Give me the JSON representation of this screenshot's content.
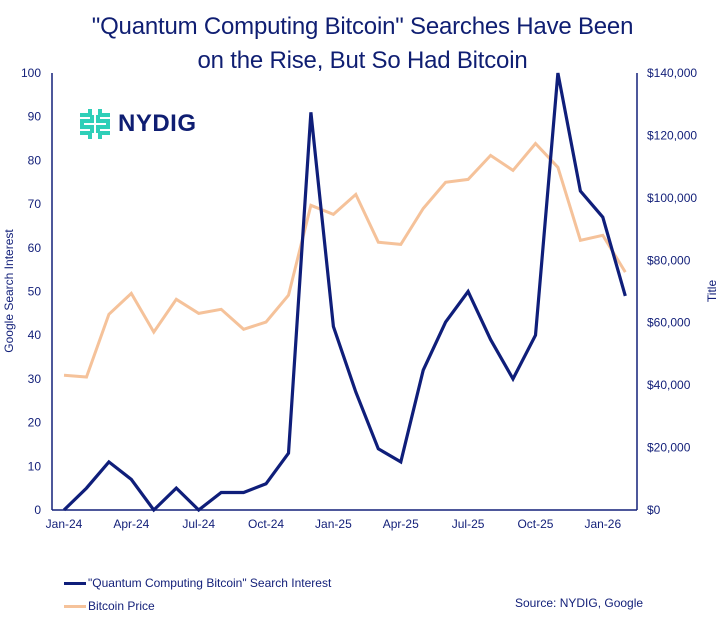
{
  "title_lines": [
    "\"Quantum Computing Bitcoin\" Searches Have Been",
    "on the Rise, But So Had Bitcoin"
  ],
  "logo": {
    "icon": "nydig-logo-icon",
    "text": "NYDIG",
    "color": "#2fcfb8"
  },
  "source": "Source: NYDIG, Google",
  "colors": {
    "search": "#0f1e7a",
    "price": "#f5c29a",
    "axis": "#14217a"
  },
  "legend": [
    {
      "label": "\"Quantum Computing Bitcoin\" Search Interest",
      "color": "#0f1e7a"
    },
    {
      "label": "Bitcoin Price",
      "color": "#f5c29a"
    }
  ],
  "chart_data": {
    "type": "line",
    "title": "\"Quantum Computing Bitcoin\" Searches Have Been on the Rise, But So Had Bitcoin",
    "x": [
      "Jan-24",
      "Feb-24",
      "Mar-24",
      "Apr-24",
      "May-24",
      "Jun-24",
      "Jul-24",
      "Aug-24",
      "Sep-24",
      "Oct-24",
      "Nov-24",
      "Dec-24",
      "Jan-25",
      "Feb-25",
      "Mar-25",
      "Apr-25",
      "May-25",
      "Jun-25",
      "Jul-25",
      "Aug-25",
      "Sep-25",
      "Oct-25",
      "Nov-25",
      "Dec-25",
      "Jan-26",
      "Feb-26"
    ],
    "x_tick_labels": [
      "Jan-24",
      "Apr-24",
      "Jul-24",
      "Oct-24",
      "Jan-25",
      "Apr-25",
      "Jul-25",
      "Oct-25",
      "Jan-26"
    ],
    "xlabel": "",
    "ylabel": "Google Search Interest",
    "y2label": "Title",
    "ylim": [
      0,
      100
    ],
    "y_ticks": [
      "0",
      "10",
      "20",
      "30",
      "40",
      "50",
      "60",
      "70",
      "80",
      "90",
      "100"
    ],
    "y2lim": [
      0,
      140000
    ],
    "y2_ticks": [
      "$0",
      "$20,000",
      "$40,000",
      "$60,000",
      "$80,000",
      "$100,000",
      "$120,000",
      "$140,000"
    ],
    "grid": false,
    "legend_position": "bottom-left",
    "series": [
      {
        "name": "\"Quantum Computing Bitcoin\" Search Interest",
        "axis": "left",
        "values": [
          0,
          5,
          11,
          7,
          0,
          5,
          0,
          4,
          4,
          6,
          13,
          91,
          42,
          27,
          14,
          11,
          32,
          43,
          50,
          39,
          30,
          40,
          100,
          73,
          67,
          49
        ]
      },
      {
        "name": "Bitcoin Price",
        "axis": "right",
        "values": [
          43200,
          42600,
          62700,
          69400,
          57000,
          67500,
          63000,
          64300,
          57900,
          60200,
          68800,
          97600,
          94700,
          101100,
          85800,
          85100,
          96600,
          105000,
          105900,
          113600,
          108800,
          117400,
          109800,
          86400,
          88000,
          76200
        ]
      }
    ]
  }
}
